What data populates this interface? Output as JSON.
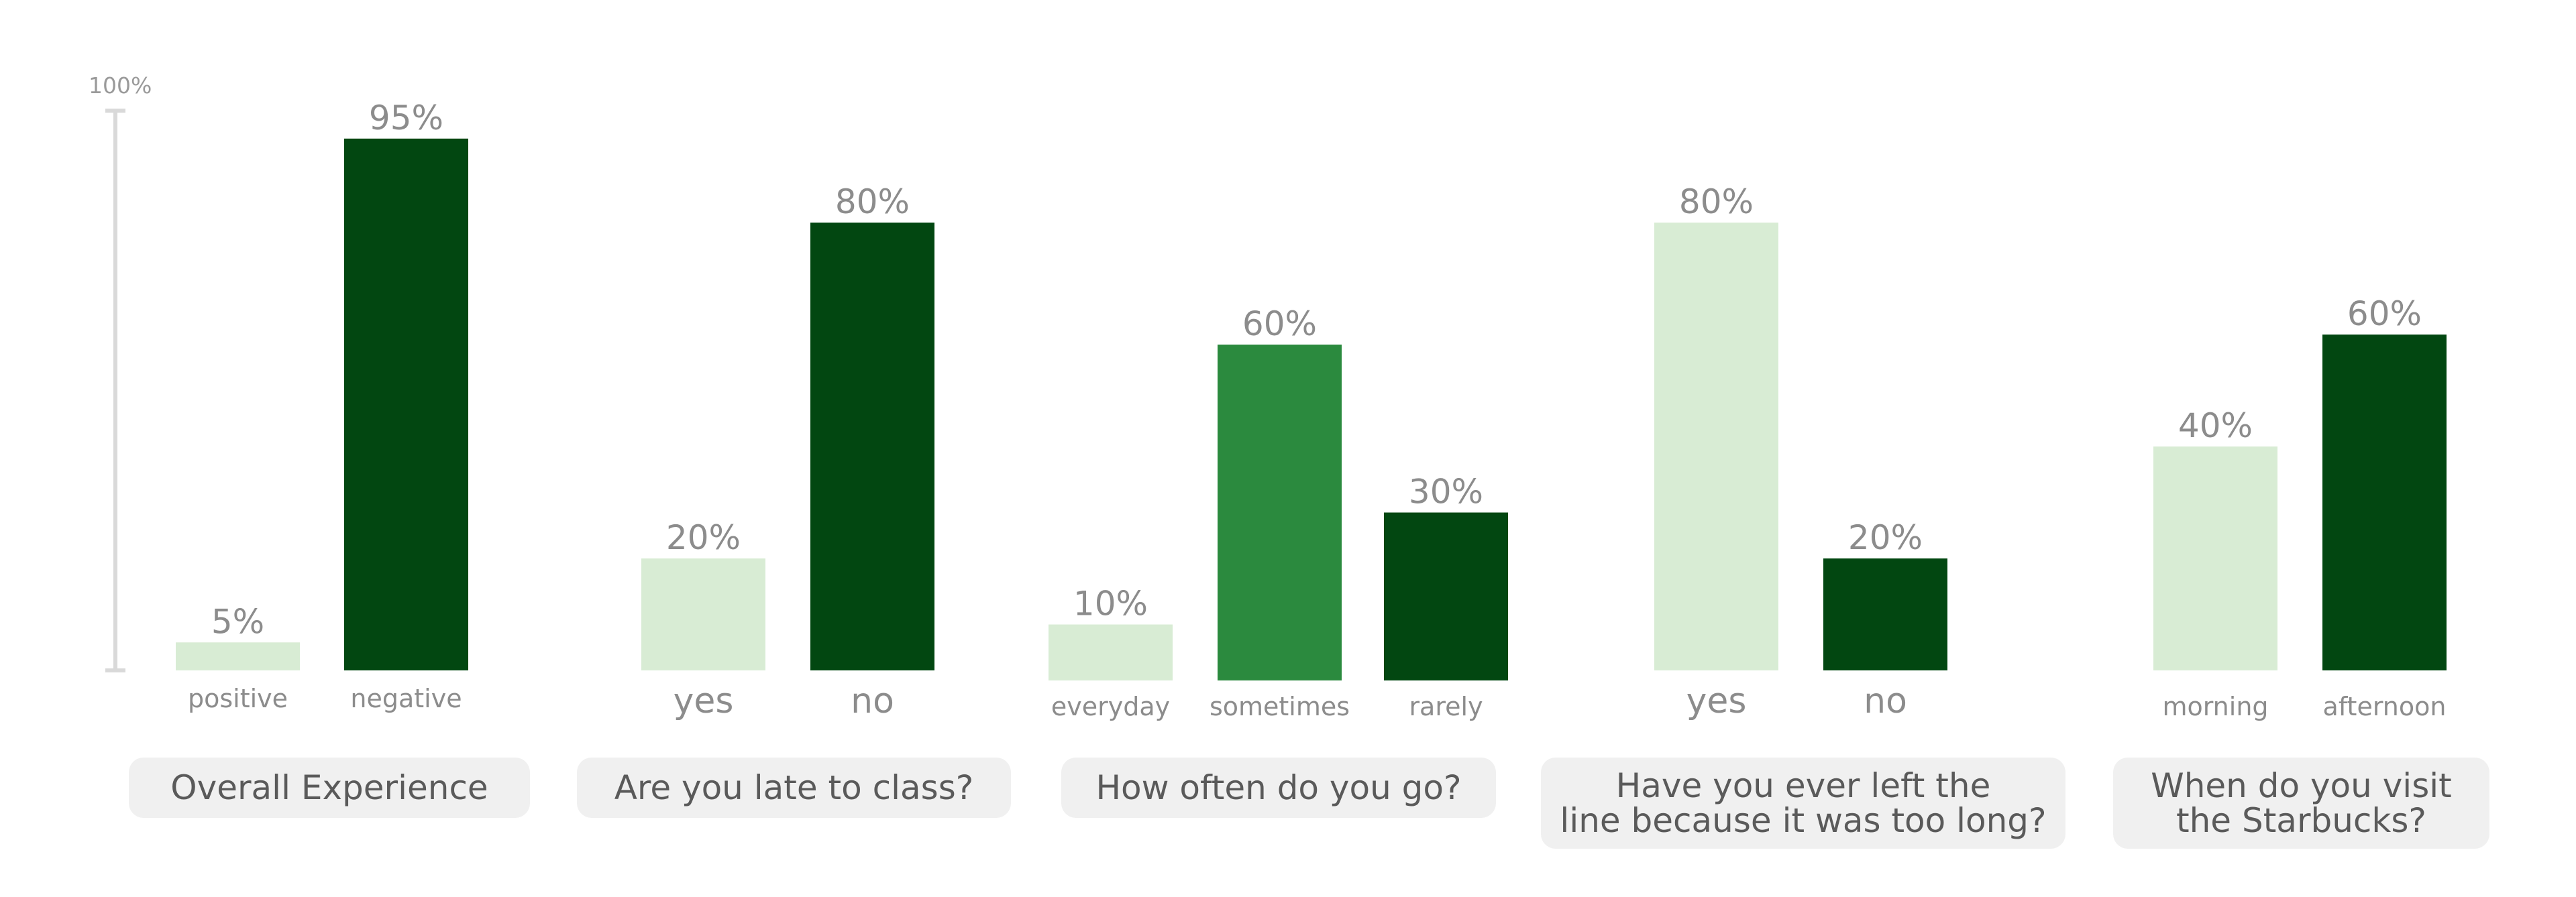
{
  "colors": {
    "light": "#d8ecd4",
    "mid": "#2b8a3e",
    "dark": "#024711",
    "value_text": "#8c8c8c",
    "axis": "#d9d9d9",
    "pill_bg": "#f0f0f0",
    "pill_text": "#5a5a5a"
  },
  "axis": {
    "top_label": "100%"
  },
  "chart_data": [
    {
      "type": "bar",
      "title": "Overall Experience",
      "categories": [
        "positive",
        "negative"
      ],
      "values": [
        5,
        95
      ],
      "value_labels": [
        "5%",
        "95%"
      ],
      "color_keys": [
        "light",
        "dark"
      ],
      "ylim": [
        0,
        100
      ]
    },
    {
      "type": "bar",
      "title": "Are you late to class?",
      "categories": [
        "yes",
        "no"
      ],
      "values": [
        20,
        80
      ],
      "value_labels": [
        "20%",
        "80%"
      ],
      "color_keys": [
        "light",
        "dark"
      ],
      "ylim": [
        0,
        100
      ]
    },
    {
      "type": "bar",
      "title": "How often do you go?",
      "categories": [
        "everyday",
        "sometimes",
        "rarely"
      ],
      "values": [
        10,
        60,
        30
      ],
      "value_labels": [
        "10%",
        "60%",
        "30%"
      ],
      "color_keys": [
        "light",
        "mid",
        "dark"
      ],
      "ylim": [
        0,
        100
      ]
    },
    {
      "type": "bar",
      "title": "Have you ever left the\nline because it was too long?",
      "categories": [
        "yes",
        "no"
      ],
      "values": [
        80,
        20
      ],
      "value_labels": [
        "80%",
        "20%"
      ],
      "color_keys": [
        "light",
        "dark"
      ],
      "ylim": [
        0,
        100
      ]
    },
    {
      "type": "bar",
      "title": "When do you visit\nthe Starbucks?",
      "categories": [
        "morning",
        "afternoon"
      ],
      "values": [
        40,
        60
      ],
      "value_labels": [
        "40%",
        "60%"
      ],
      "color_keys": [
        "light",
        "dark"
      ],
      "ylim": [
        0,
        100
      ]
    }
  ]
}
